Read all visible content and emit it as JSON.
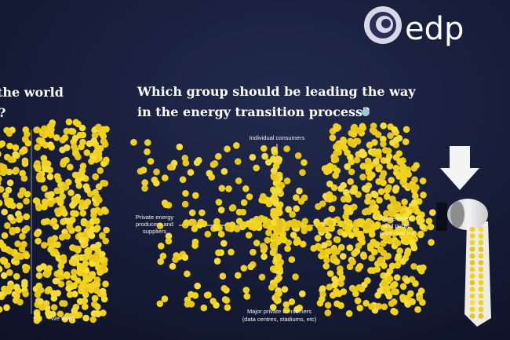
{
  "logo": "edp",
  "left_panel": {
    "title": "the world",
    "mark": "?",
    "footer": "We won't"
  },
  "question": {
    "line1": "Which group should be leading the way",
    "line2": "in the energy transition process?"
  },
  "labels": {
    "top": "Individual consumers",
    "left": [
      "Private energy",
      "producers and",
      "suppliers"
    ],
    "right": [
      "Government",
      "and public",
      "organisations"
    ],
    "bottom": [
      "Major private consumers",
      "(data centres, stadiums, etc)"
    ]
  }
}
